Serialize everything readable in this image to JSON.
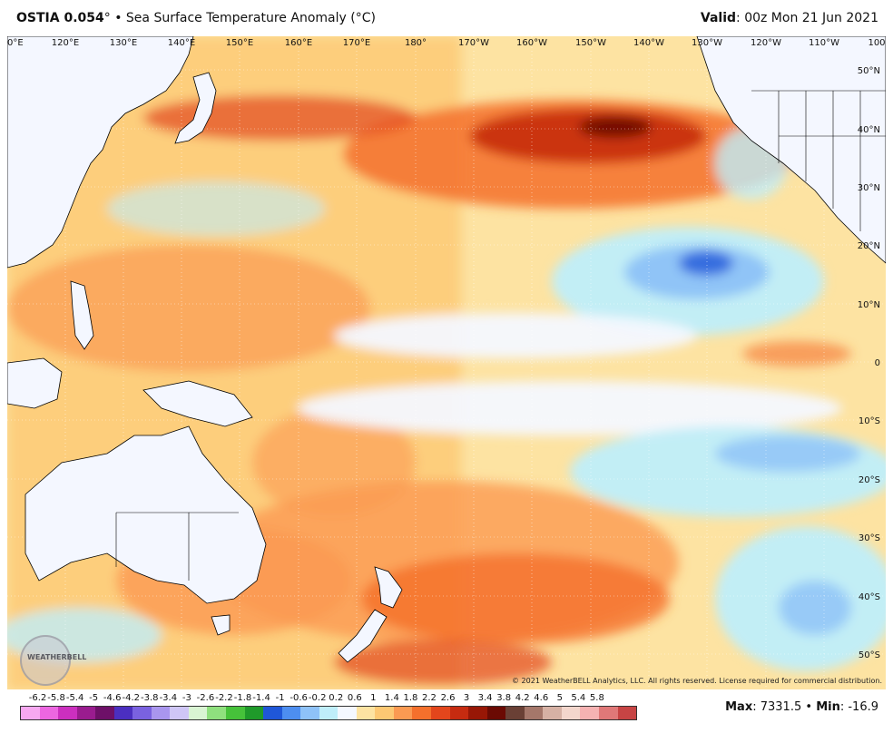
{
  "header": {
    "model": "OSTIA 0.054",
    "degree": "°",
    "bullet": "•",
    "product": "Sea Surface Temperature Anomaly (°C)",
    "valid_label": "Valid",
    "valid_value": ": 00z Mon 21 Jun 2021"
  },
  "map": {
    "lon_labels": [
      "0°E",
      "120°E",
      "130°E",
      "140°E",
      "150°E",
      "160°E",
      "170°E",
      "180°",
      "170°W",
      "160°W",
      "150°W",
      "140°W",
      "130°W",
      "120°W",
      "110°W",
      "100"
    ],
    "lat_labels": [
      "50°N",
      "40°N",
      "30°N",
      "20°N",
      "10°N",
      "0",
      "10°S",
      "20°S",
      "30°S",
      "40°S",
      "50°S"
    ],
    "copyright": "© 2021 WeatherBELL Analytics, LLC. All rights reserved. License required for commercial distribution.",
    "logo_text": "WEATHERBELL"
  },
  "legend": {
    "ticks": [
      "-6.2",
      "-5.8",
      "-5.4",
      "-5",
      "-4.6",
      "-4.2",
      "-3.8",
      "-3.4",
      "-3",
      "-2.6",
      "-2.2",
      "-1.8",
      "-1.4",
      "-1",
      "-0.6",
      "-0.2",
      "0.2",
      "0.6",
      "1",
      "1.4",
      "1.8",
      "2.2",
      "2.6",
      "3",
      "3.4",
      "3.8",
      "4.2",
      "4.6",
      "5",
      "5.4",
      "5.8"
    ],
    "colors": [
      "#f7a8f0",
      "#ec66e0",
      "#cc2fbf",
      "#9a1c8f",
      "#6e1068",
      "#4b2fc0",
      "#7a62e0",
      "#a996ee",
      "#cfc6f6",
      "#d9f5d3",
      "#8fe07e",
      "#46c23a",
      "#1f9a2a",
      "#1f57d8",
      "#4d8ef0",
      "#8ec2f8",
      "#bfeefa",
      "#f4f8ff",
      "#fde3a2",
      "#fdc873",
      "#fb9a52",
      "#f5702c",
      "#e3461c",
      "#c62b10",
      "#981706",
      "#6b0a03",
      "#6a4035",
      "#a5776a",
      "#d6b1a4",
      "#f3d6cc",
      "#f6b2b2",
      "#e07878",
      "#c74444"
    ],
    "max_label": "Max",
    "max_value": ": 7331.5",
    "bullet": "•",
    "min_label": "Min",
    "min_value": ": -16.9"
  }
}
